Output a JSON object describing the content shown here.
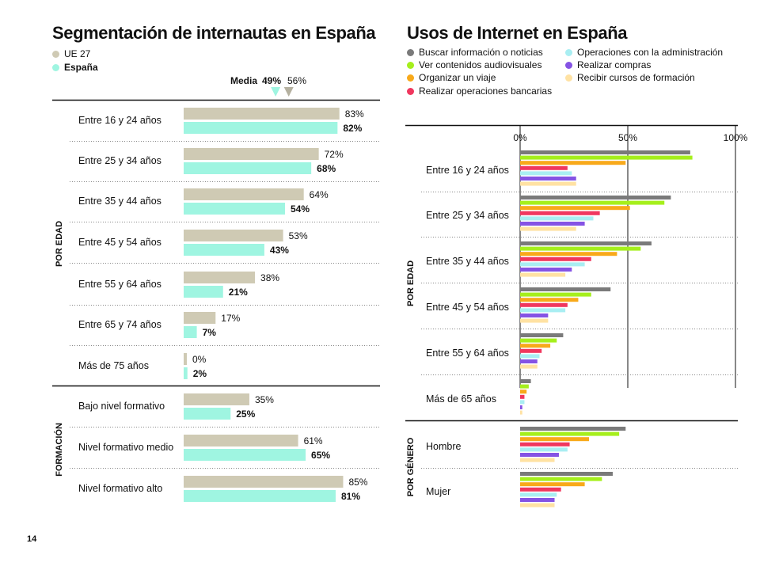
{
  "page_number": "14",
  "colors": {
    "ue27": "#cfcab4",
    "espana": "#9ff5e1",
    "buscar": "#7a7a7a",
    "audiovisuales": "#a5ef1c",
    "viaje": "#f8a91a",
    "bancarias": "#f0375e",
    "administracion": "#a9eef2",
    "compras": "#8553e4",
    "formacion": "#ffe2a3"
  },
  "chart_data": [
    {
      "type": "bar",
      "title": "Segmentación de internautas en España",
      "orientation": "horizontal",
      "legend": [
        "UE 27",
        "España"
      ],
      "legend_placement": "top-left",
      "media": {
        "label": "Media",
        "espana": "49%",
        "ue27": "56%",
        "espana_value": 49,
        "ue27_value": 56
      },
      "groups": [
        {
          "label": "POR EDAD",
          "categories": [
            "Entre 16 y 24 años",
            "Entre 25 y 34 años",
            "Entre 35 y 44 años",
            "Entre 45 y 54 años",
            "Entre 55 y 64 años",
            "Entre 65 y 74 años",
            "Más de 75 años"
          ]
        },
        {
          "label": "FORMACIÓN",
          "categories": [
            "Bajo nivel formativo",
            "Nivel formativo medio",
            "Nivel formativo alto"
          ]
        }
      ],
      "categories": [
        "Entre 16 y 24 años",
        "Entre 25 y 34 años",
        "Entre 35 y 44 años",
        "Entre 45 y 54 años",
        "Entre 55 y 64 años",
        "Entre 65 y 74 años",
        "Más de 75 años",
        "Bajo nivel formativo",
        "Nivel formativo medio",
        "Nivel formativo alto"
      ],
      "series": [
        {
          "name": "UE 27",
          "values": [
            83,
            72,
            64,
            53,
            38,
            17,
            0,
            35,
            61,
            85
          ]
        },
        {
          "name": "España",
          "values": [
            82,
            68,
            54,
            43,
            21,
            7,
            2,
            25,
            65,
            81
          ]
        }
      ],
      "xlim": [
        0,
        100
      ],
      "grid": false
    },
    {
      "type": "bar",
      "title": "Usos de Internet en España",
      "orientation": "horizontal",
      "legend_placement": "top",
      "x_ticks": [
        "0%",
        "50%",
        "100%"
      ],
      "xlim": [
        0,
        100
      ],
      "groups": [
        {
          "label": "POR EDAD",
          "categories": [
            "Entre 16 y 24 años",
            "Entre 25 y 34 años",
            "Entre 35 y 44 años",
            "Entre 45 y 54 años",
            "Entre 55 y 64 años",
            "Más de 65 años"
          ]
        },
        {
          "label": "POR GÉNERO",
          "categories": [
            "Hombre",
            "Mujer"
          ]
        }
      ],
      "categories": [
        "Entre 16 y 24 años",
        "Entre 25 y 34 años",
        "Entre 35 y 44 años",
        "Entre 45 y 54 años",
        "Entre 55 y 64 años",
        "Más de 65 años",
        "Hombre",
        "Mujer"
      ],
      "series": [
        {
          "name": "Buscar información o noticias",
          "values": [
            79,
            70,
            61,
            42,
            20,
            5,
            49,
            43
          ]
        },
        {
          "name": "Ver contenidos audiovisuales",
          "values": [
            80,
            67,
            56,
            33,
            17,
            4,
            46,
            38
          ]
        },
        {
          "name": "Organizar un viaje",
          "values": [
            49,
            51,
            45,
            27,
            14,
            3,
            32,
            30
          ]
        },
        {
          "name": "Realizar operaciones bancarias",
          "values": [
            22,
            37,
            33,
            22,
            10,
            2,
            23,
            19
          ]
        },
        {
          "name": "Operaciones con la administración",
          "values": [
            24,
            34,
            30,
            21,
            9,
            2,
            22,
            17
          ]
        },
        {
          "name": "Realizar compras",
          "values": [
            26,
            30,
            24,
            13,
            8,
            1,
            18,
            16
          ]
        },
        {
          "name": "Recibir cursos de formación",
          "values": [
            26,
            26,
            21,
            13,
            8,
            1,
            16,
            16
          ]
        }
      ],
      "grid": false
    }
  ]
}
